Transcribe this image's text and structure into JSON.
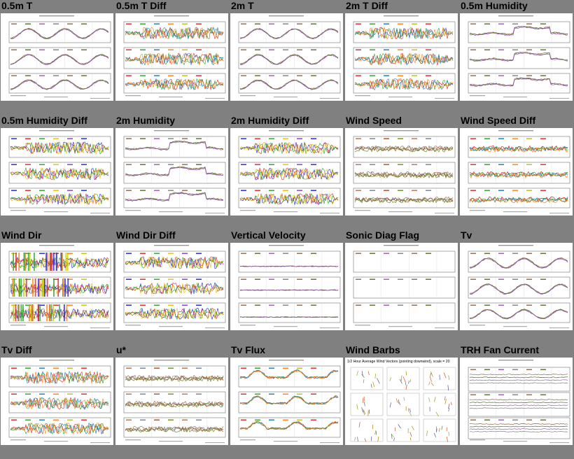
{
  "plots": [
    {
      "title": "0.5m T",
      "style": "smooth",
      "pal": 0
    },
    {
      "title": "0.5m T Diff",
      "style": "noisy",
      "pal": 1
    },
    {
      "title": "2m T",
      "style": "smooth",
      "pal": 0
    },
    {
      "title": "2m T Diff",
      "style": "noisy",
      "pal": 1
    },
    {
      "title": "0.5m Humidity",
      "style": "smooth2",
      "pal": 0
    },
    {
      "title": "0.5m Humidity Diff",
      "style": "noisy",
      "pal": 2
    },
    {
      "title": "2m Humidity",
      "style": "smooth2",
      "pal": 0
    },
    {
      "title": "2m Humidity Diff",
      "style": "noisy",
      "pal": 2
    },
    {
      "title": "Wind Speed",
      "style": "flat",
      "pal": 3
    },
    {
      "title": "Wind Speed Diff",
      "style": "flat",
      "pal": 1
    },
    {
      "title": "Wind Dir",
      "style": "bars",
      "pal": 4
    },
    {
      "title": "Wind Dir Diff",
      "style": "noisy",
      "pal": 2
    },
    {
      "title": "Vertical Velocity",
      "style": "zero",
      "pal": 0
    },
    {
      "title": "Sonic Diag Flag",
      "style": "empty",
      "pal": 0
    },
    {
      "title": "Tv",
      "style": "smooth",
      "pal": 0
    },
    {
      "title": "Tv Diff",
      "style": "noisy",
      "pal": 1
    },
    {
      "title": "u*",
      "style": "flat",
      "pal": 3
    },
    {
      "title": "Tv Flux",
      "style": "wave",
      "pal": 1
    },
    {
      "title": "Wind Barbs",
      "style": "barbs",
      "pal": 0,
      "heading": "1/2 Hour Average Wind Vectors (pointing downwind), scale = 20"
    },
    {
      "title": "TRH Fan Current",
      "style": "fan",
      "pal": 0
    }
  ],
  "palettes": [
    [
      "#8a6a50",
      "#556b2f",
      "#9b59b6",
      "#7f7f7f"
    ],
    [
      "#d62728",
      "#2ca02c",
      "#1f77b4",
      "#ff7f0e",
      "#bcbd22"
    ],
    [
      "#1f1fd6",
      "#d62728",
      "#2ca02c",
      "#e8c000",
      "#7f3fbf"
    ],
    [
      "#b07050",
      "#708090",
      "#a0522d",
      "#6b8e23"
    ],
    [
      "#c8c800",
      "#2ca02c",
      "#1f1fd6",
      "#d62728",
      "#ff7f0e"
    ]
  ]
}
